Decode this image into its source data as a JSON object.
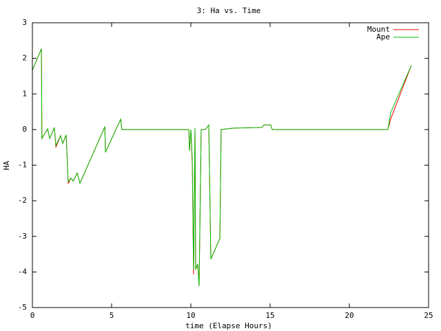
{
  "chart_data": {
    "type": "line",
    "title": "3: Ha vs. Time",
    "x_label": "time (Elapse Hours)",
    "y_label": "HA",
    "x": [
      0,
      0.57,
      0.6,
      0.96,
      1.09,
      1.39,
      1.48,
      1.78,
      1.91,
      2.13,
      2.26,
      2.43,
      2.57,
      2.83,
      3.0,
      4.57,
      4.61,
      5.57,
      5.65,
      9.87,
      9.91,
      10.0,
      10.09,
      10.17,
      10.26,
      10.3,
      10.43,
      10.52,
      10.65,
      10.91,
      11.13,
      11.26,
      11.83,
      11.91,
      12.74,
      14.48,
      14.61,
      15.04,
      15.13,
      22.43,
      22.61,
      23.91
    ],
    "series": [
      {
        "name": "Mount",
        "color": "#ff0000",
        "values": [
          1.67,
          2.27,
          -0.25,
          0.02,
          -0.25,
          0.06,
          -0.5,
          -0.17,
          -0.39,
          -0.15,
          -1.52,
          -1.36,
          -1.45,
          -1.22,
          -1.51,
          0.08,
          -0.64,
          0.29,
          0,
          0,
          -0.6,
          0,
          -1.0,
          -4.07,
          0.04,
          -3.93,
          -3.78,
          -4.4,
          0,
          0,
          0.13,
          -3.64,
          -3.06,
          0,
          0.04,
          0.06,
          0.13,
          0.13,
          0,
          0,
          0.3,
          1.8
        ]
      },
      {
        "name": "Ape",
        "color": "#00c000",
        "values": [
          1.67,
          2.27,
          -0.25,
          0.02,
          -0.25,
          0.06,
          -0.45,
          -0.17,
          -0.39,
          -0.15,
          -1.47,
          -1.36,
          -1.45,
          -1.22,
          -1.51,
          0.08,
          -0.64,
          0.29,
          0,
          0,
          -0.6,
          0,
          -0.83,
          -3.93,
          0.04,
          -3.93,
          -3.78,
          -4.4,
          0,
          0,
          0.13,
          -3.64,
          -3.06,
          0,
          0.04,
          0.06,
          0.13,
          0.13,
          0,
          0,
          0.48,
          1.8
        ]
      }
    ],
    "xlim": [
      0,
      25
    ],
    "xticks": [
      0,
      5,
      10,
      15,
      20,
      25
    ],
    "ylim": [
      -5,
      3
    ],
    "yticks": [
      -5,
      -4,
      -3,
      -2,
      -1,
      0,
      1,
      2,
      3
    ],
    "legend": "top-right",
    "grid": false
  }
}
